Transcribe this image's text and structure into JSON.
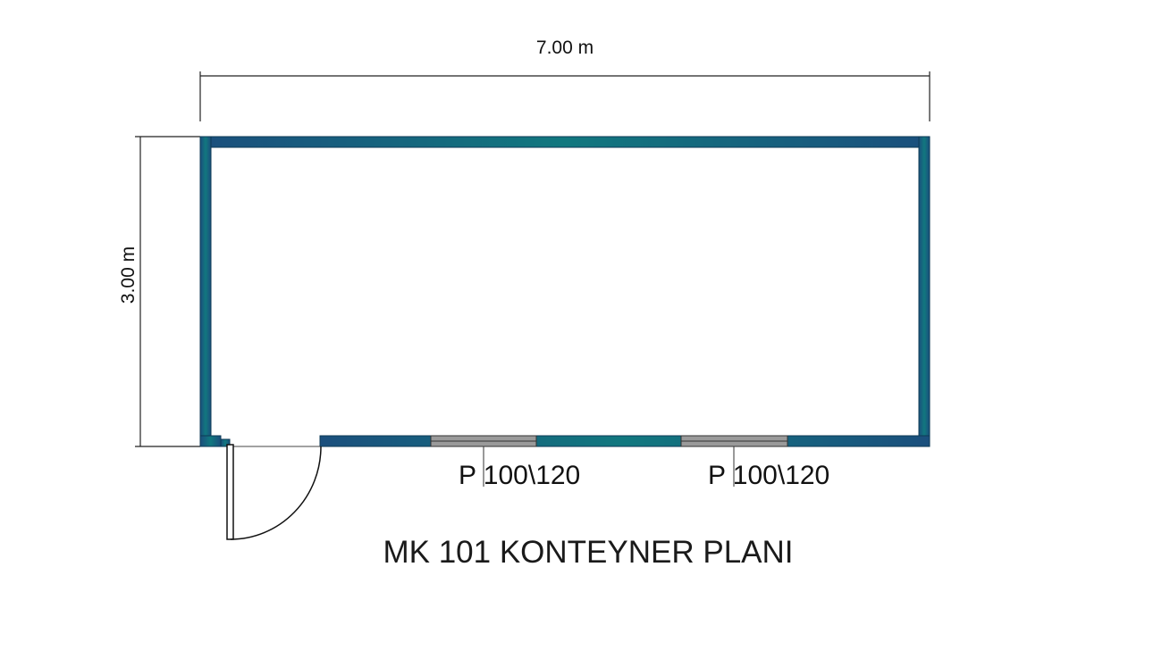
{
  "dimensions": {
    "width": "7.00 m",
    "depth": "3.00 m"
  },
  "windows": [
    {
      "label": "P 100\\120"
    },
    {
      "label": "P 100\\120"
    }
  ],
  "title": "MK 101 KONTEYNER PLANI"
}
